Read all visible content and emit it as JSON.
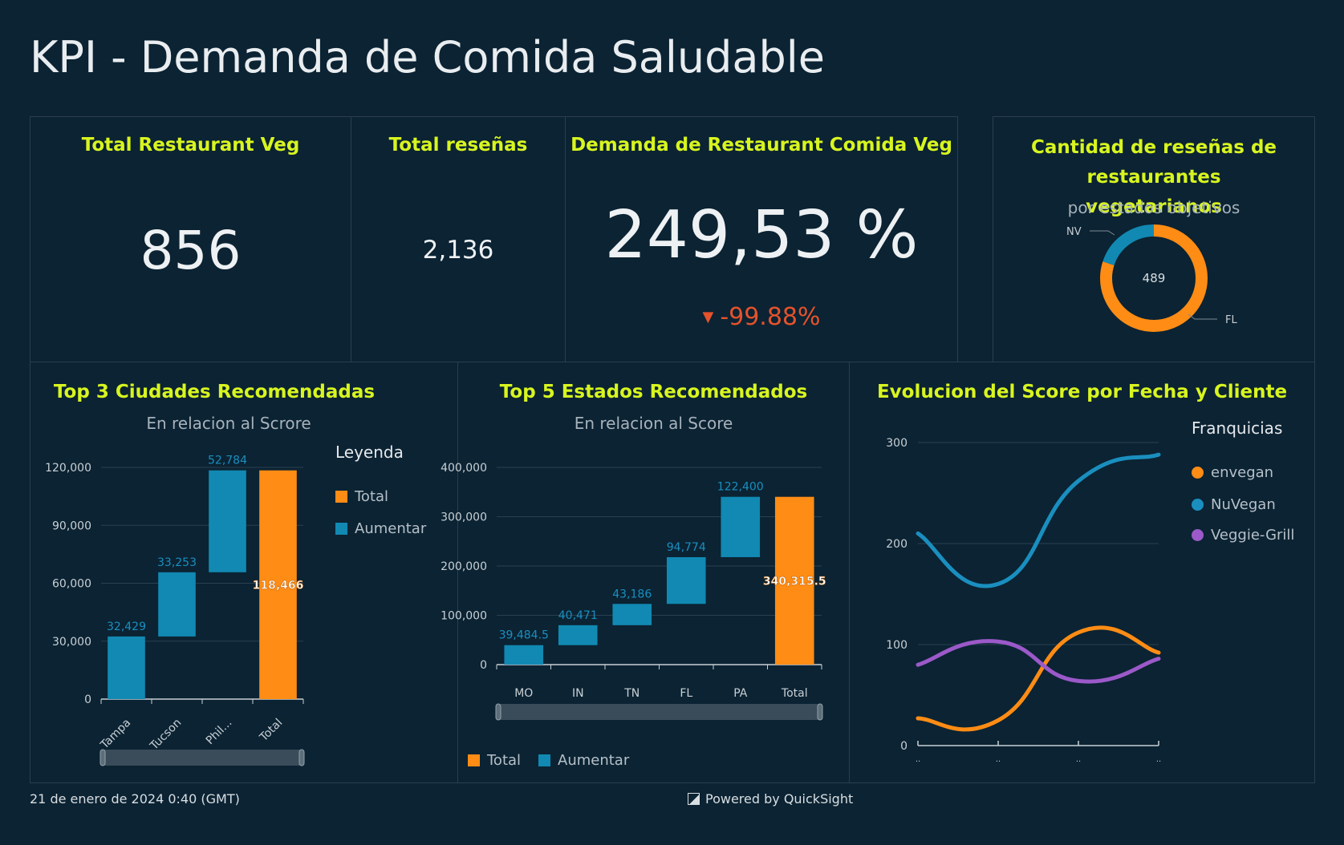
{
  "dashboard": {
    "title": "KPI - Demanda de Comida Saludable"
  },
  "kpi_total_restaurant": {
    "title": "Total Restaurant Veg",
    "value": "856"
  },
  "kpi_total_resenas": {
    "title": "Total reseñas",
    "value": "2,136"
  },
  "kpi_demanda": {
    "title": "Demanda de Restaurant Comida Veg",
    "value": "249,53 %",
    "delta": "-99.88%",
    "delta_color": "#e5522b"
  },
  "colors": {
    "total": "#ff8c14",
    "aumentar": "#1189b3",
    "envegan": "#ff8c14",
    "nuvegan": "#1a8fbf",
    "veggie": "#9b59c9",
    "title_accent": "#d8f51f"
  },
  "donut": {
    "title": "Cantidad de reseñas de restaurantes vegetarianos",
    "subtitle": "por estados objetivos"
  },
  "cities": {
    "title": "Top 3 Ciudades Recomendadas",
    "subtitle": "En relacion al Scrore",
    "legend_title": "Leyenda",
    "legend": [
      "Total",
      "Aumentar"
    ]
  },
  "states": {
    "title": "Top 5 Estados Recomendados",
    "subtitle": "En relacion al Score",
    "legend": [
      "Total",
      "Aumentar"
    ]
  },
  "evolution": {
    "title": "Evolucion del Score por Fecha y Cliente",
    "legend_title": "Franquicias",
    "legend": [
      "envegan",
      "NuVegan",
      "Veggie-Grill"
    ]
  },
  "footer": {
    "timestamp": "21 de enero de 2024 0:40 (GMT)",
    "powered": "Powered by QuickSight"
  },
  "chart_data": [
    {
      "type": "pie",
      "title": "Cantidad de reseñas de restaurantes vegetarianos",
      "subtitle": "por estados objetivos",
      "center_label": "489",
      "categories": [
        "FL",
        "NV"
      ],
      "values": [
        0.8,
        0.2
      ]
    },
    {
      "type": "bar",
      "subtype": "waterfall",
      "title": "Top 3 Ciudades Recomendadas",
      "subtitle": "En relacion al Scrore",
      "categories": [
        "Tampa",
        "Tucson",
        "Phil...",
        "Total"
      ],
      "series": [
        {
          "name": "Aumentar",
          "values": [
            32429,
            33253,
            52784,
            null
          ]
        },
        {
          "name": "Total",
          "values": [
            null,
            null,
            null,
            118466
          ]
        }
      ],
      "labels": [
        "32,429",
        "33,253",
        "52,784",
        "118,466"
      ],
      "yticks": [
        "0",
        "30,000",
        "60,000",
        "90,000",
        "120,000"
      ],
      "ylim": [
        0,
        120000
      ],
      "grid": true,
      "legend": "right"
    },
    {
      "type": "bar",
      "subtype": "waterfall",
      "title": "Top 5 Estados Recomendados",
      "subtitle": "En relacion al Score",
      "categories": [
        "MO",
        "IN",
        "TN",
        "FL",
        "PA",
        "Total"
      ],
      "series": [
        {
          "name": "Aumentar",
          "values": [
            39484.5,
            40471,
            43186,
            94774,
            122400,
            null
          ]
        },
        {
          "name": "Total",
          "values": [
            null,
            null,
            null,
            null,
            null,
            340315.5
          ]
        }
      ],
      "labels": [
        "39,484.5",
        "40,471",
        "43,186",
        "94,774",
        "122,400",
        "340,315.5"
      ],
      "yticks": [
        "0",
        "100,000",
        "200,000",
        "300,000",
        "400,000"
      ],
      "ylim": [
        0,
        400000
      ],
      "grid": true,
      "legend": "bottom"
    },
    {
      "type": "line",
      "title": "Evolucion del Score por Fecha y Cliente",
      "x": [
        0,
        1,
        2,
        3
      ],
      "xticks": [
        "..",
        "..",
        "..",
        ".."
      ],
      "series": [
        {
          "name": "envegan",
          "values": [
            27,
            25,
            112,
            92
          ]
        },
        {
          "name": "NuVegan",
          "values": [
            210,
            160,
            262,
            288
          ]
        },
        {
          "name": "Veggie-Grill",
          "values": [
            80,
            103,
            64,
            86
          ]
        }
      ],
      "yticks": [
        "0",
        "100",
        "200",
        "300"
      ],
      "ylim": [
        0,
        300
      ],
      "grid": true,
      "legend": "right"
    }
  ]
}
